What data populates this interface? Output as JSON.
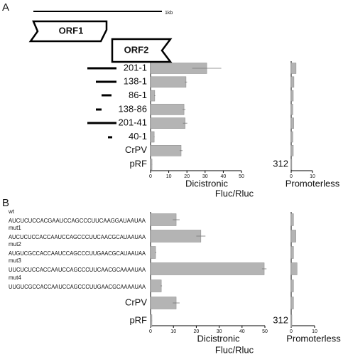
{
  "figure": {
    "panel_a": {
      "label": "A",
      "scale_label": "1kb",
      "orf_labels": [
        "ORF1",
        "ORF2"
      ],
      "shared_axis_label": "Fluc/Rluc"
    },
    "panel_b": {
      "label": "B",
      "shared_axis_label": "Fluc/Rluc"
    }
  },
  "chart_data": [
    {
      "type": "bar",
      "orientation": "horizontal",
      "panel": "A",
      "color": "#b4b4b4",
      "categories": [
        "201-1",
        "138-1",
        "86-1",
        "138-86",
        "201-41",
        "40-1",
        "CrPV",
        "pRF"
      ],
      "values": [
        30.9,
        19.5,
        2.3,
        18.4,
        19,
        2,
        16.8,
        0.8
      ],
      "errors": [
        8,
        0.6,
        0.3,
        0.8,
        1.2,
        0.2,
        0.8,
        0.1
      ],
      "xlim": [
        0,
        50
      ],
      "xticks": [
        0,
        10,
        20,
        30,
        40,
        50
      ],
      "xlabel": "Dicistronic"
    },
    {
      "type": "bar",
      "orientation": "horizontal",
      "panel": "A",
      "color": "#b4b4b4",
      "values": [
        2.3,
        1.3,
        1,
        0.8,
        1.2,
        0.8,
        1,
        0.3
      ],
      "xlim": [
        0,
        10
      ],
      "xticks": [
        0,
        10
      ],
      "xlabel": "Promoterless",
      "annotation": "312"
    },
    {
      "type": "bar",
      "orientation": "horizontal",
      "panel": "B",
      "color": "#b4b4b4",
      "categories": [
        "wt",
        "mut1",
        "mut2",
        "mut3",
        "mut4",
        "CrPV",
        "pRF"
      ],
      "sequences": [
        "AUCUCUCCACGAAUCCAGCCCUUCAAGGAUAAUAA",
        "AUCUCUCCACCAAUCCAGCCCUUCAACGCAUAAUAA",
        "AUGUCGCCACCAAUCCAGCCCUUGAACGCAUAAUAA",
        "UUCUCUCCACCAAUCCAGCCCUUCAACGCAAAAUAA",
        "UUGUCGCCACCAAUCCAGCCCUUGAACGCAAAAUAA",
        null,
        null
      ],
      "values": [
        11.2,
        22,
        2.2,
        49.7,
        4.7,
        11.2,
        0.6
      ],
      "errors": [
        1.5,
        2,
        0.3,
        1,
        0.3,
        1.5,
        0.1
      ],
      "xlim": [
        0,
        50
      ],
      "xticks": [
        0,
        10,
        20,
        30,
        40,
        50
      ],
      "xlabel": "Dicistronic"
    },
    {
      "type": "bar",
      "orientation": "horizontal",
      "panel": "B",
      "color": "#b4b4b4",
      "values": [
        1,
        2,
        1,
        2.5,
        1,
        1,
        0.3
      ],
      "xlim": [
        0,
        10
      ],
      "xticks": [
        0,
        10
      ],
      "xlabel": "Promoterless",
      "annotation": "312"
    }
  ]
}
